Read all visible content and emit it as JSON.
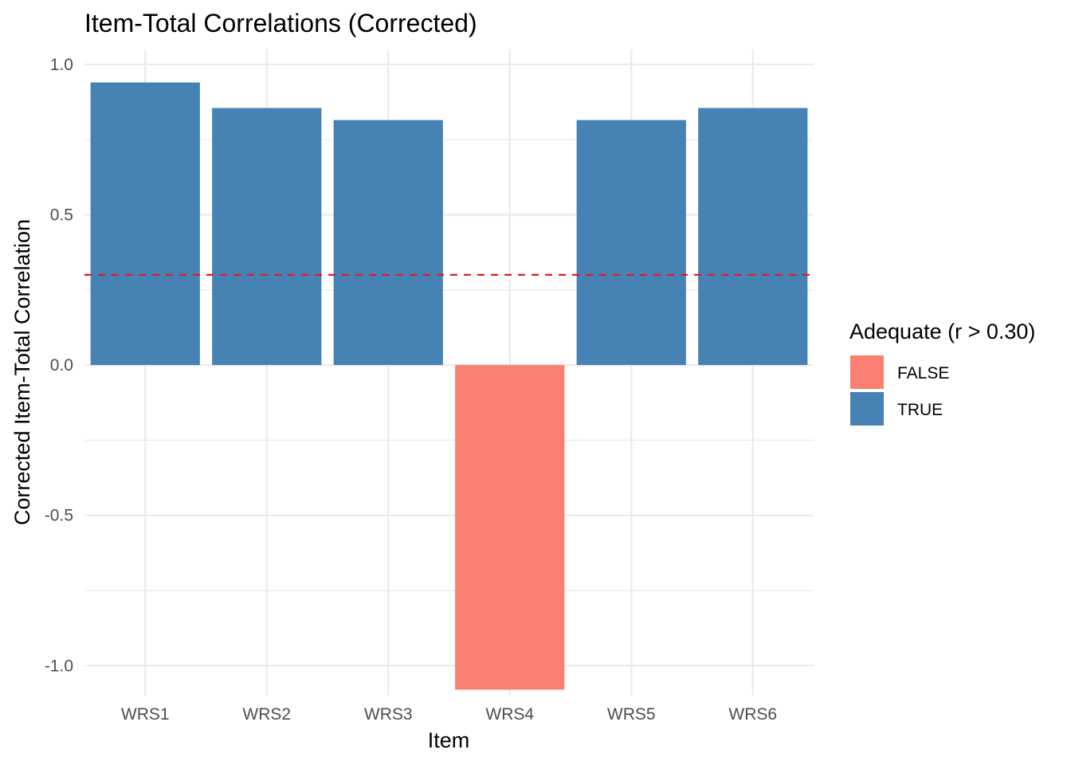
{
  "chart_data": {
    "type": "bar",
    "title": "Item-Total Correlations (Corrected)",
    "xlabel": "Item",
    "ylabel": "Corrected Item-Total Correlation",
    "categories": [
      "WRS1",
      "WRS2",
      "WRS3",
      "WRS4",
      "WRS5",
      "WRS6"
    ],
    "values": [
      0.94,
      0.855,
      0.815,
      -1.08,
      0.815,
      0.855
    ],
    "fill_group": [
      "TRUE",
      "TRUE",
      "TRUE",
      "FALSE",
      "TRUE",
      "TRUE"
    ],
    "ylim": [
      -1.1,
      1.05
    ],
    "yticks": [
      -1.0,
      -0.5,
      0.0,
      0.5,
      1.0
    ],
    "ytick_labels": [
      "-1.0",
      "-0.5",
      "0.0",
      "0.5",
      "1.0"
    ],
    "reference_line": {
      "y": 0.3,
      "style": "dashed",
      "color": "#e41a1c"
    },
    "grid": true,
    "legend": {
      "title": "Adequate (r > 0.30)",
      "placement": "right",
      "entries": [
        {
          "label": "FALSE",
          "color": "#fa8072"
        },
        {
          "label": "TRUE",
          "color": "#4682b4"
        }
      ]
    }
  }
}
